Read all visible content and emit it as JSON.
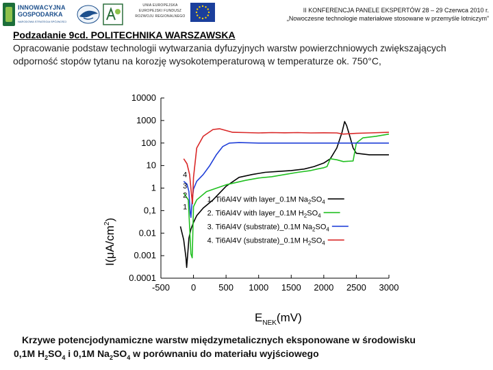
{
  "header": {
    "logo_innov_line1": "INNOWACYJNA",
    "logo_innov_line2": "GOSPODARKA",
    "logo_innov_line3": "NARODOWA STRATEGIA SPÓJNOŚCI",
    "eu_line1": "UNIA EUROPEJSKA",
    "eu_line2": "EUROPEJSKI FUNDUSZ",
    "eu_line3": "ROZWOJU REGIONALNEGO",
    "conference_line1": "II KONFERENCJA PANELE EKSPERTÓW 28 – 29 Czerwca 2010 r.",
    "conference_line2": "„Nowoczesne technologie materiałowe stosowane w przemyśle lotniczym”",
    "colors": {
      "eu_blue": "#1b3f9c",
      "eu_star": "#ffd200",
      "innov_green": "#1c6e3a"
    }
  },
  "subtitle": "Podzadanie 9cd. POLITECHNIKA WARSZAWSKA",
  "description": "Opracowanie podstaw technologii wytwarzania dyfuzyjnych warstw powierzchniowych zwiększających odporność stopów tytanu na korozję wysokotemperaturową w temperaturze ok. 750°C,",
  "caption": {
    "line1": "Krzywe potencjodynamiczne warstw międzymetalicznych eksponowane w środowisku",
    "line2_a": "0,1M H",
    "line2_b": "2",
    "line2_c": "SO",
    "line2_d": "4",
    "line2_e": " i 0,1M Na",
    "line2_f": "2",
    "line2_g": "SO",
    "line2_h": "4",
    "line2_i": " w porównaniu do materiału wyjściowego"
  },
  "chart_data": {
    "type": "line",
    "xlabel_main": "E",
    "xlabel_sub": "NEK",
    "xlabel_unit": "(mV)",
    "ylabel_main": "I(",
    "ylabel_mu": "μ",
    "ylabel_rest": "A/cm",
    "ylabel_sup": "2",
    "ylabel_close": ")",
    "xlim": [
      -500,
      3000
    ],
    "ylim": [
      0.0001,
      10000
    ],
    "yscale": "log",
    "xticks": [
      -500,
      0,
      500,
      1000,
      1500,
      2000,
      2500,
      3000
    ],
    "xtick_labels": [
      "-500",
      "0",
      "500",
      "1000",
      "1500",
      "2000",
      "2500",
      "3000"
    ],
    "yticks": [
      0.0001,
      0.001,
      0.01,
      0.1,
      1,
      10,
      100,
      1000,
      10000
    ],
    "ytick_labels": [
      "0.0001",
      "0.001",
      "0.01",
      "0,1",
      "1",
      "10",
      "100",
      "1000",
      "10000"
    ],
    "grid": false,
    "legend_placement": "center",
    "legend": [
      {
        "num": "1.",
        "pre": "Ti6Al4V with layer_0.1M Na",
        "s1": "2",
        "mid": "SO",
        "s2": "4"
      },
      {
        "num": "2.",
        "pre": "Ti6Al4V with layer_0.1M H",
        "s1": "2",
        "mid": "SO",
        "s2": "4"
      },
      {
        "num": "3.",
        "pre": "Ti6Al4V (substrate)_0.1M Na",
        "s1": "2",
        "mid": "SO",
        "s2": "4"
      },
      {
        "num": "4.",
        "pre": "Ti6Al4V (substrate)_0.1M H",
        "s1": "2",
        "mid": "SO",
        "s2": "4"
      }
    ],
    "curve_labels": [
      {
        "text": "4",
        "x": -130,
        "y": 4
      },
      {
        "text": "3",
        "x": -130,
        "y": 1.3
      },
      {
        "text": "2",
        "x": -130,
        "y": 0.5
      },
      {
        "text": "1",
        "x": -130,
        "y": 0.15
      }
    ],
    "series": [
      {
        "num": "1",
        "color": "#000000",
        "points": [
          [
            -200,
            0.02
          ],
          [
            -150,
            0.005
          ],
          [
            -115,
            0.0008
          ],
          [
            -105,
            0.0003
          ],
          [
            -90,
            0.001
          ],
          [
            -70,
            0.006
          ],
          [
            -40,
            0.015
          ],
          [
            0,
            0.03
          ],
          [
            50,
            0.06
          ],
          [
            150,
            0.13
          ],
          [
            300,
            0.3
          ],
          [
            500,
            1.2
          ],
          [
            700,
            3
          ],
          [
            900,
            4
          ],
          [
            1100,
            5
          ],
          [
            1300,
            5.5
          ],
          [
            1500,
            6
          ],
          [
            1700,
            7
          ],
          [
            1850,
            9
          ],
          [
            2000,
            13
          ],
          [
            2100,
            20
          ],
          [
            2200,
            60
          ],
          [
            2280,
            300
          ],
          [
            2320,
            900
          ],
          [
            2350,
            600
          ],
          [
            2400,
            200
          ],
          [
            2450,
            60
          ],
          [
            2500,
            35
          ],
          [
            2700,
            30
          ],
          [
            3000,
            30
          ]
        ]
      },
      {
        "num": "2",
        "color": "#1fbf1f",
        "points": [
          [
            -150,
            0.6
          ],
          [
            -80,
            0.3
          ],
          [
            -40,
            0.0012
          ],
          [
            -20,
            0.0008
          ],
          [
            0,
            0.15
          ],
          [
            50,
            0.3
          ],
          [
            200,
            0.7
          ],
          [
            500,
            1.4
          ],
          [
            800,
            2.2
          ],
          [
            1000,
            2.8
          ],
          [
            1200,
            3.2
          ],
          [
            1400,
            4
          ],
          [
            1600,
            5
          ],
          [
            1800,
            6
          ],
          [
            1900,
            7
          ],
          [
            2000,
            8
          ],
          [
            2050,
            9
          ],
          [
            2100,
            20
          ],
          [
            2200,
            18
          ],
          [
            2300,
            15
          ],
          [
            2450,
            16
          ],
          [
            2500,
            100
          ],
          [
            2600,
            170
          ],
          [
            2800,
            200
          ],
          [
            3000,
            250
          ]
        ]
      },
      {
        "num": "3",
        "color": "#1f3fd8",
        "points": [
          [
            -150,
            2
          ],
          [
            -100,
            1.5
          ],
          [
            -70,
            0.7
          ],
          [
            -50,
            0.08
          ],
          [
            -40,
            0.05
          ],
          [
            -20,
            0.3
          ],
          [
            0,
            0.9
          ],
          [
            50,
            2
          ],
          [
            150,
            4
          ],
          [
            250,
            10
          ],
          [
            350,
            30
          ],
          [
            450,
            70
          ],
          [
            550,
            100
          ],
          [
            700,
            105
          ],
          [
            1000,
            100
          ],
          [
            1500,
            100
          ],
          [
            2000,
            100
          ],
          [
            2500,
            100
          ],
          [
            3000,
            100
          ]
        ]
      },
      {
        "num": "4",
        "color": "#d92626",
        "points": [
          [
            -150,
            20
          ],
          [
            -100,
            12
          ],
          [
            -60,
            4
          ],
          [
            -30,
            0.5
          ],
          [
            -15,
            0.2
          ],
          [
            0,
            3
          ],
          [
            50,
            60
          ],
          [
            150,
            200
          ],
          [
            300,
            400
          ],
          [
            400,
            430
          ],
          [
            600,
            300
          ],
          [
            800,
            290
          ],
          [
            1000,
            280
          ],
          [
            1200,
            290
          ],
          [
            1400,
            285
          ],
          [
            1600,
            290
          ],
          [
            1800,
            280
          ],
          [
            2000,
            285
          ],
          [
            2200,
            280
          ],
          [
            2300,
            250
          ],
          [
            2500,
            270
          ],
          [
            2700,
            280
          ],
          [
            3000,
            300
          ]
        ]
      }
    ]
  }
}
